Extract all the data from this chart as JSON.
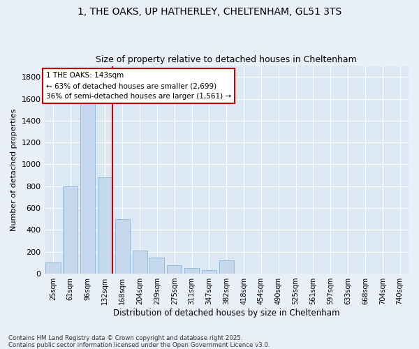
{
  "title_line1": "1, THE OAKS, UP HATHERLEY, CHELTENHAM, GL51 3TS",
  "title_line2": "Size of property relative to detached houses in Cheltenham",
  "xlabel": "Distribution of detached houses by size in Cheltenham",
  "ylabel": "Number of detached properties",
  "categories": [
    "25sqm",
    "61sqm",
    "96sqm",
    "132sqm",
    "168sqm",
    "204sqm",
    "239sqm",
    "275sqm",
    "311sqm",
    "347sqm",
    "382sqm",
    "418sqm",
    "454sqm",
    "490sqm",
    "525sqm",
    "561sqm",
    "597sqm",
    "633sqm",
    "668sqm",
    "704sqm",
    "740sqm"
  ],
  "values": [
    100,
    800,
    1650,
    880,
    500,
    210,
    150,
    75,
    50,
    30,
    120,
    0,
    0,
    0,
    0,
    0,
    0,
    0,
    0,
    0,
    0
  ],
  "bar_color": "#c5d8ee",
  "bar_edge_color": "#7aadd4",
  "vline_color": "#cc0000",
  "vline_x_index": 3,
  "annotation_text": "1 THE OAKS: 143sqm\n← 63% of detached houses are smaller (2,699)\n36% of semi-detached houses are larger (1,561) →",
  "annotation_box_color": "#cc0000",
  "ylim": [
    0,
    1900
  ],
  "yticks": [
    0,
    200,
    400,
    600,
    800,
    1000,
    1200,
    1400,
    1600,
    1800
  ],
  "footer": "Contains HM Land Registry data © Crown copyright and database right 2025.\nContains public sector information licensed under the Open Government Licence v3.0.",
  "bg_color": "#e8eff8",
  "plot_bg_color": "#dce8f4"
}
